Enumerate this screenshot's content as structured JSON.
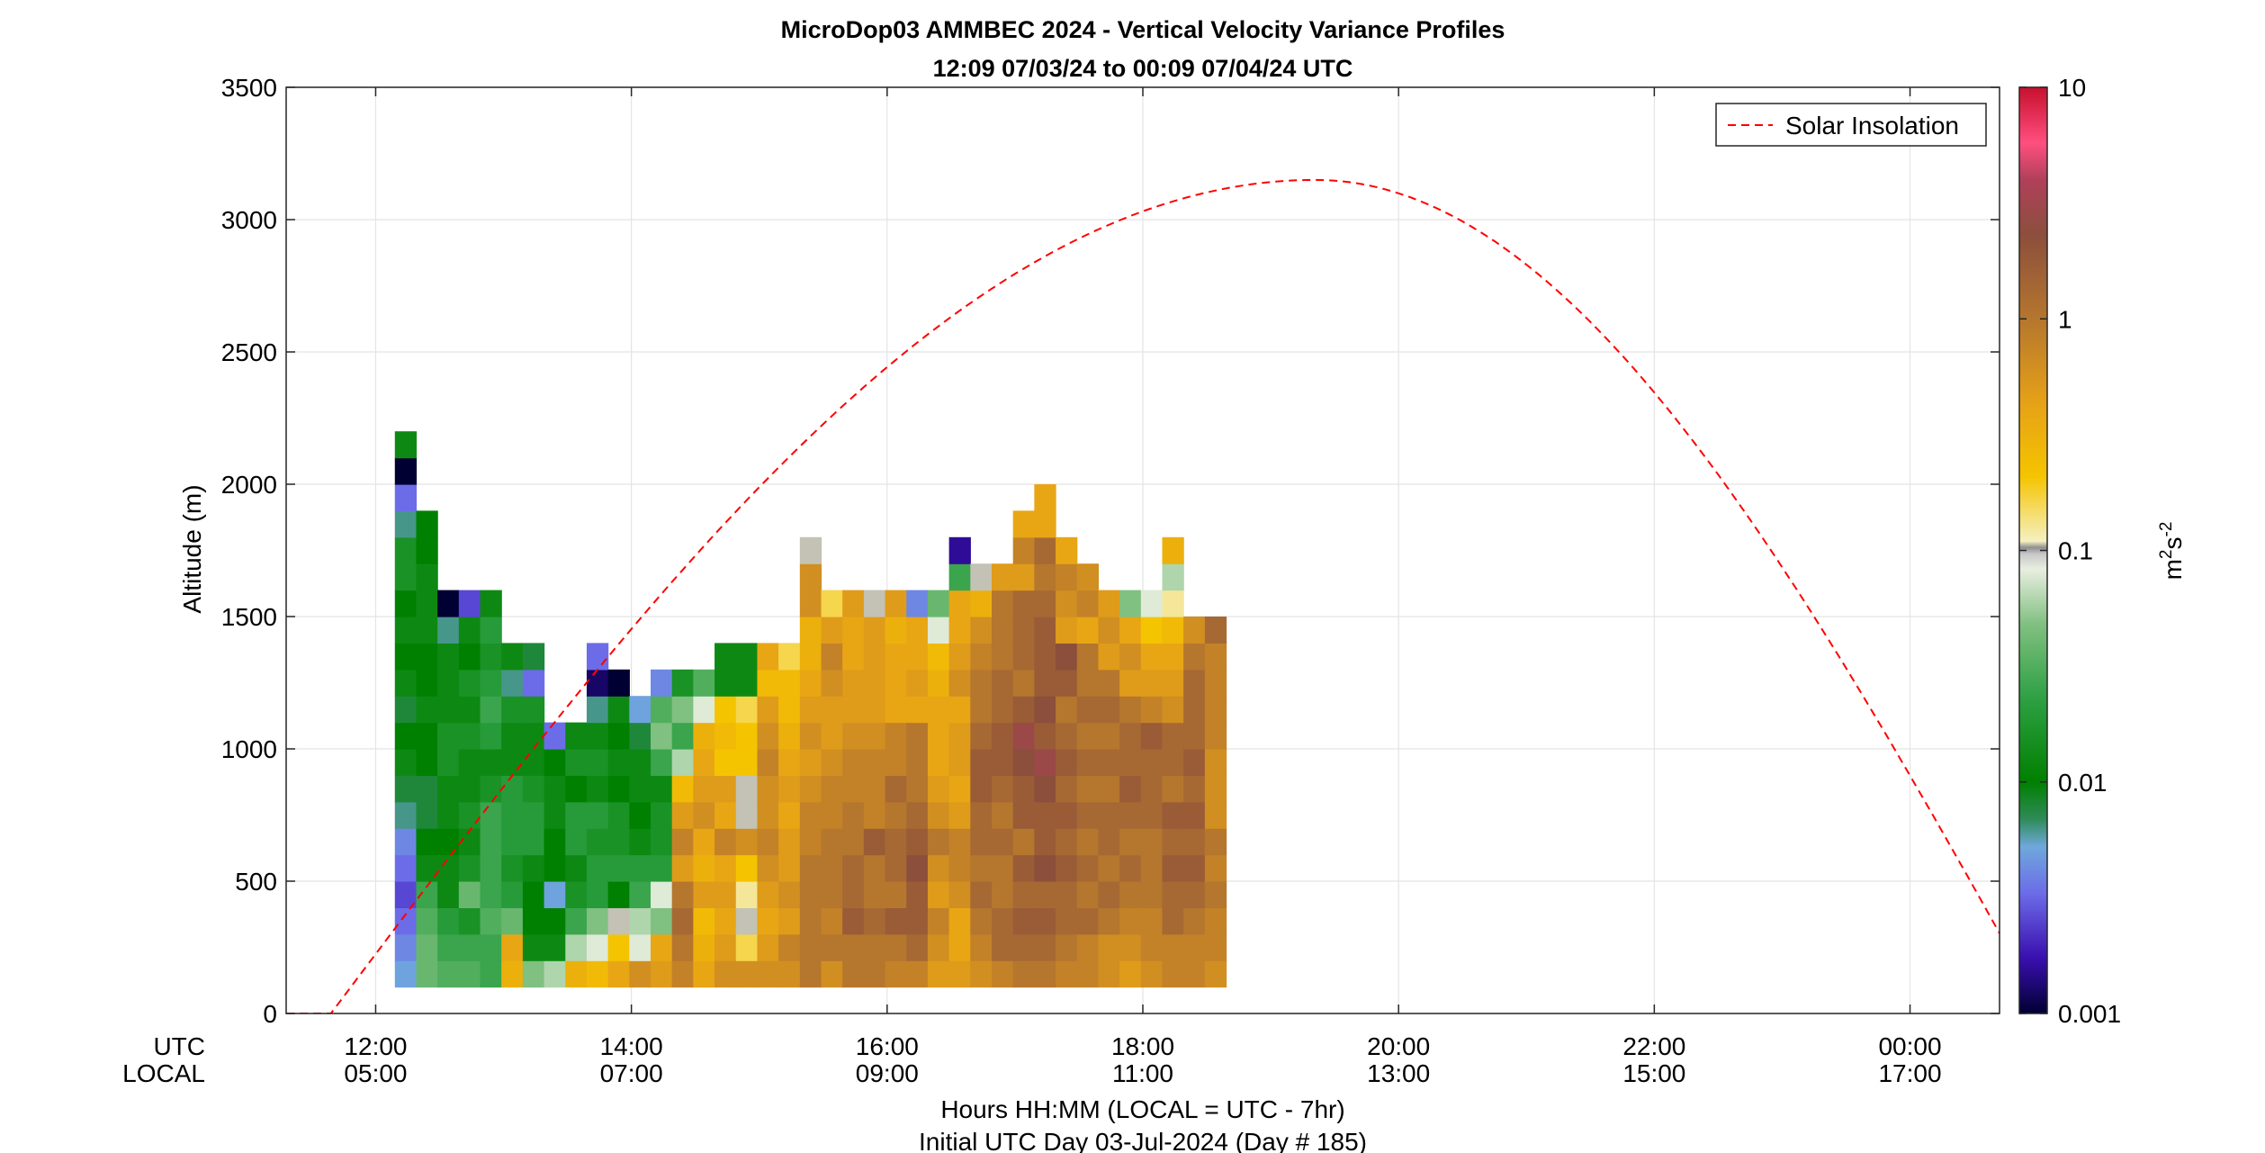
{
  "chart_data": {
    "type": "heatmap",
    "title": "MicroDop03 AMMBEC 2024 - Vertical Velocity Variance Profiles",
    "subtitle": "12:09 07/03/24 to 00:09 07/04/24  UTC",
    "ylabel": "Altitude (m)",
    "xlabel": "Hours HH:MM  (LOCAL = UTC - 7hr)",
    "xlabel2": "Initial UTC Day 03-Jul-2024 (Day # 185)",
    "x_row_labels": [
      "UTC",
      "LOCAL"
    ],
    "x_ticks_utc": [
      "12:00",
      "14:00",
      "16:00",
      "18:00",
      "20:00",
      "22:00",
      "00:00"
    ],
    "x_ticks_local": [
      "05:00",
      "07:00",
      "09:00",
      "11:00",
      "13:00",
      "15:00",
      "17:00"
    ],
    "x_tick_hours": [
      12,
      14,
      16,
      18,
      20,
      22,
      24
    ],
    "xlim_hours": [
      11.3,
      24.7
    ],
    "ylim": [
      0,
      3500
    ],
    "y_ticks": [
      "0",
      "500",
      "1000",
      "1500",
      "2000",
      "2500",
      "3000",
      "3500"
    ],
    "grid": true,
    "legend": {
      "position": "top-right",
      "entries": [
        {
          "label": "Solar Insolation",
          "style": "dashed",
          "color": "#ff0000"
        }
      ]
    },
    "colorbar": {
      "scale": "log",
      "range": [
        0.001,
        10
      ],
      "tick_labels": [
        "0.001",
        "0.01",
        "0.1",
        "1",
        "10"
      ],
      "units": "m",
      "units_sup1": "2",
      "units_mid": "s",
      "units_sup2": "-2"
    },
    "solar_insolation": {
      "sunrise_hour": 11.65,
      "sunset_hour": 25.05,
      "peak_altitude_equiv": 3150,
      "peak_hour": 19.35
    },
    "grid_spec": {
      "time_start_hour": 12.15,
      "time_step_hours": 0.1667,
      "alt_bottom": 100,
      "alt_step": 100
    },
    "columns": [
      [
        -2.3,
        -2.4,
        -2.5,
        -2.6,
        -2.5,
        -2.4,
        -2.2,
        -2.1,
        -1.9,
        -2.0,
        -2.1,
        -1.9,
        -2.0,
        -1.9,
        -2.0,
        -1.8,
        -1.8,
        -2.2,
        -2.5,
        -3.0,
        -1.9
      ],
      [
        -1.4,
        -1.4,
        -1.5,
        -1.6,
        -1.9,
        -2.0,
        -2.1,
        -2.1,
        -2.0,
        -2.0,
        -1.9,
        -2.0,
        -2.0,
        -1.9,
        -1.9,
        -1.9,
        -2.0,
        -2.0
      ],
      [
        -1.5,
        -1.6,
        -1.7,
        -1.9,
        -1.9,
        -2.0,
        -1.9,
        -1.9,
        -1.8,
        -1.8,
        -1.9,
        -1.9,
        -1.9,
        -2.2,
        -3.0
      ],
      [
        -1.5,
        -1.6,
        -1.8,
        -1.4,
        -1.8,
        -1.9,
        -1.8,
        -1.9,
        -1.9,
        -1.8,
        -1.9,
        -1.8,
        -2.0,
        -1.9,
        -2.6
      ],
      [
        -1.6,
        -1.6,
        -1.5,
        -1.6,
        -1.6,
        -1.6,
        -1.6,
        -1.8,
        -1.9,
        -1.7,
        -1.6,
        -1.7,
        -1.8,
        -1.7,
        -1.9
      ],
      [
        -0.5,
        -0.4,
        -1.4,
        -1.7,
        -1.8,
        -1.7,
        -1.7,
        -1.7,
        -1.9,
        -1.9,
        -1.8,
        -2.2,
        -1.9
      ],
      [
        -1.3,
        -1.9,
        -2.0,
        -2.0,
        -1.9,
        -1.7,
        -1.7,
        -1.8,
        -1.9,
        -1.9,
        -1.8,
        -2.5,
        -2.1
      ],
      [
        -1.2,
        -1.9,
        -2.0,
        -2.3,
        -2.0,
        -2.0,
        -1.9,
        -1.9,
        -2.0,
        -2.5
      ],
      [
        -0.5,
        -1.2,
        -1.6,
        -1.8,
        -1.9,
        -1.7,
        -1.7,
        -2.0,
        -1.8,
        -1.9
      ],
      [
        -0.6,
        -1.1,
        -1.3,
        -1.7,
        -1.7,
        -1.8,
        -1.7,
        -1.9,
        -1.8,
        -1.9,
        -2.2,
        -2.9,
        -2.5
      ],
      [
        -0.4,
        -0.7,
        -1.0,
        -2.0,
        -1.7,
        -1.8,
        -1.8,
        -2.0,
        -1.9,
        -2.0,
        -1.9,
        -3.0
      ],
      [
        -0.2,
        -1.1,
        -1.2,
        -1.6,
        -1.7,
        -1.9,
        -2.0,
        -1.9,
        -1.9,
        -2.1,
        -2.3
      ],
      [
        -0.3,
        -0.4,
        -1.3,
        -1.1,
        -1.7,
        -1.8,
        -1.8,
        -1.9,
        -1.6,
        -1.3,
        -1.5,
        -2.4
      ],
      [
        -0.1,
        0.0,
        0.1,
        0.0,
        -0.3,
        -0.1,
        -0.3,
        -0.6,
        -1.2,
        -1.6,
        -1.3,
        -1.8
      ],
      [
        -0.4,
        -0.5,
        -0.6,
        -0.3,
        -0.5,
        -0.4,
        -0.2,
        -0.3,
        -0.4,
        -0.5,
        -1.1,
        -1.5
      ],
      [
        -0.2,
        -0.3,
        -0.4,
        -0.3,
        -0.4,
        -0.1,
        -0.4,
        -0.3,
        -0.7,
        -0.6,
        -0.7,
        -1.9,
        -1.9
      ],
      [
        -0.2,
        -0.8,
        -1.0,
        -0.9,
        -0.7,
        -0.2,
        -1.0,
        -1.0,
        -0.7,
        -0.7,
        -0.8,
        -1.9,
        -1.9
      ],
      [
        -0.2,
        -0.3,
        -0.4,
        -0.3,
        -0.2,
        -0.1,
        -0.2,
        -0.2,
        -0.1,
        -0.2,
        -0.3,
        -0.6,
        -0.4
      ],
      [
        -0.2,
        -0.1,
        -0.3,
        -0.2,
        -0.3,
        -0.3,
        -0.4,
        -0.3,
        -0.4,
        -0.5,
        -0.6,
        -0.6,
        -0.8
      ],
      [
        0.0,
        0.0,
        0.0,
        0.0,
        0.0,
        -0.1,
        -0.1,
        -0.2,
        -0.3,
        -0.2,
        -0.3,
        -0.4,
        -0.5,
        -0.5,
        -0.2,
        -0.2,
        -1.0
      ],
      [
        -0.2,
        0.0,
        -0.1,
        0.0,
        0.0,
        0.0,
        -0.1,
        -0.1,
        -0.2,
        -0.3,
        -0.3,
        -0.2,
        -0.1,
        -0.3,
        -0.8
      ],
      [
        0.0,
        0.0,
        0.2,
        0.1,
        0.1,
        0.0,
        0.0,
        -0.1,
        -0.1,
        -0.2,
        -0.3,
        -0.3,
        -0.4,
        -0.4,
        -0.3
      ],
      [
        0.0,
        0.0,
        0.1,
        0.0,
        0.0,
        0.2,
        -0.1,
        -0.1,
        -0.1,
        -0.2,
        -0.3,
        -0.3,
        -0.3,
        -0.3,
        -1.0
      ],
      [
        -0.1,
        0.0,
        0.2,
        0.0,
        0.1,
        0.1,
        0.0,
        0.1,
        -0.1,
        -0.1,
        -0.4,
        -0.4,
        -0.4,
        -0.5,
        -0.3
      ],
      [
        -0.1,
        0.1,
        0.2,
        0.2,
        0.3,
        0.2,
        0.1,
        0.0,
        0.0,
        0.0,
        -0.4,
        -0.3,
        -0.4,
        -0.4,
        -2.4
      ],
      [
        -0.3,
        -0.2,
        -0.1,
        -0.3,
        -0.2,
        0.0,
        -0.2,
        -0.3,
        -0.4,
        -0.4,
        -0.4,
        -0.5,
        -0.6,
        -1.1,
        -1.4
      ],
      [
        -0.3,
        -0.4,
        -0.4,
        -0.2,
        -0.1,
        -0.1,
        -0.3,
        -0.4,
        -0.3,
        -0.3,
        -0.4,
        -0.2,
        -0.3,
        -0.4,
        -0.4,
        -1.6,
        -2.8
      ],
      [
        -0.2,
        -0.1,
        0.0,
        0.1,
        0.0,
        0.1,
        0.1,
        0.2,
        0.2,
        0.1,
        0.0,
        0.0,
        -0.1,
        -0.2,
        -0.5,
        -1.0
      ],
      [
        -0.1,
        0.1,
        0.1,
        0.0,
        0.0,
        0.1,
        0.0,
        0.1,
        0.2,
        0.2,
        0.1,
        0.1,
        0.0,
        0.0,
        0.0,
        -0.3
      ],
      [
        0.0,
        0.1,
        0.2,
        0.1,
        0.2,
        0.0,
        0.2,
        0.2,
        0.3,
        0.4,
        0.2,
        0.0,
        0.1,
        0.1,
        0.1,
        -0.3,
        -0.1,
        -0.4
      ],
      [
        0.0,
        0.1,
        0.2,
        0.1,
        0.3,
        0.2,
        0.2,
        0.3,
        0.4,
        0.2,
        0.3,
        0.2,
        0.2,
        0.2,
        0.1,
        0.0,
        0.1,
        -0.4,
        -0.4
      ],
      [
        -0.1,
        0.0,
        0.1,
        0.1,
        0.2,
        0.1,
        0.2,
        0.1,
        0.2,
        0.1,
        0.0,
        0.2,
        0.3,
        -0.3,
        -0.2,
        -0.1,
        -0.4
      ],
      [
        -0.1,
        -0.1,
        0.1,
        0.0,
        0.1,
        0.0,
        0.1,
        0.0,
        0.1,
        0.0,
        0.1,
        0.0,
        0.0,
        -0.4,
        -0.1,
        -0.2
      ],
      [
        -0.2,
        -0.2,
        0.0,
        0.1,
        0.0,
        0.1,
        0.1,
        0.0,
        0.1,
        0.0,
        0.1,
        0.0,
        -0.3,
        -0.2,
        -0.3
      ],
      [
        -0.3,
        -0.2,
        -0.1,
        0.0,
        0.1,
        0.0,
        0.1,
        0.2,
        0.1,
        0.1,
        0.0,
        -0.3,
        -0.2,
        -0.4,
        -1.3
      ],
      [
        -0.2,
        -0.1,
        -0.1,
        0.0,
        0.0,
        0.0,
        0.1,
        0.1,
        0.1,
        0.2,
        -0.1,
        -0.3,
        -0.4,
        -0.7,
        -1.1
      ],
      [
        -0.1,
        -0.1,
        0.1,
        0.1,
        0.2,
        0.1,
        0.2,
        0.0,
        0.1,
        0.1,
        -0.2,
        -0.3,
        -0.4,
        -0.6,
        -0.9,
        -1.2,
        -0.5
      ],
      [
        -0.1,
        -0.1,
        0.0,
        0.1,
        0.2,
        0.1,
        0.2,
        0.1,
        0.2,
        0.1,
        0.1,
        0.1,
        0.0,
        -0.2
      ],
      [
        -0.2,
        -0.1,
        -0.1,
        0.0,
        -0.1,
        0.0,
        -0.2,
        -0.2,
        -0.2,
        -0.1,
        -0.1,
        -0.1,
        -0.1,
        0.1
      ]
    ]
  }
}
